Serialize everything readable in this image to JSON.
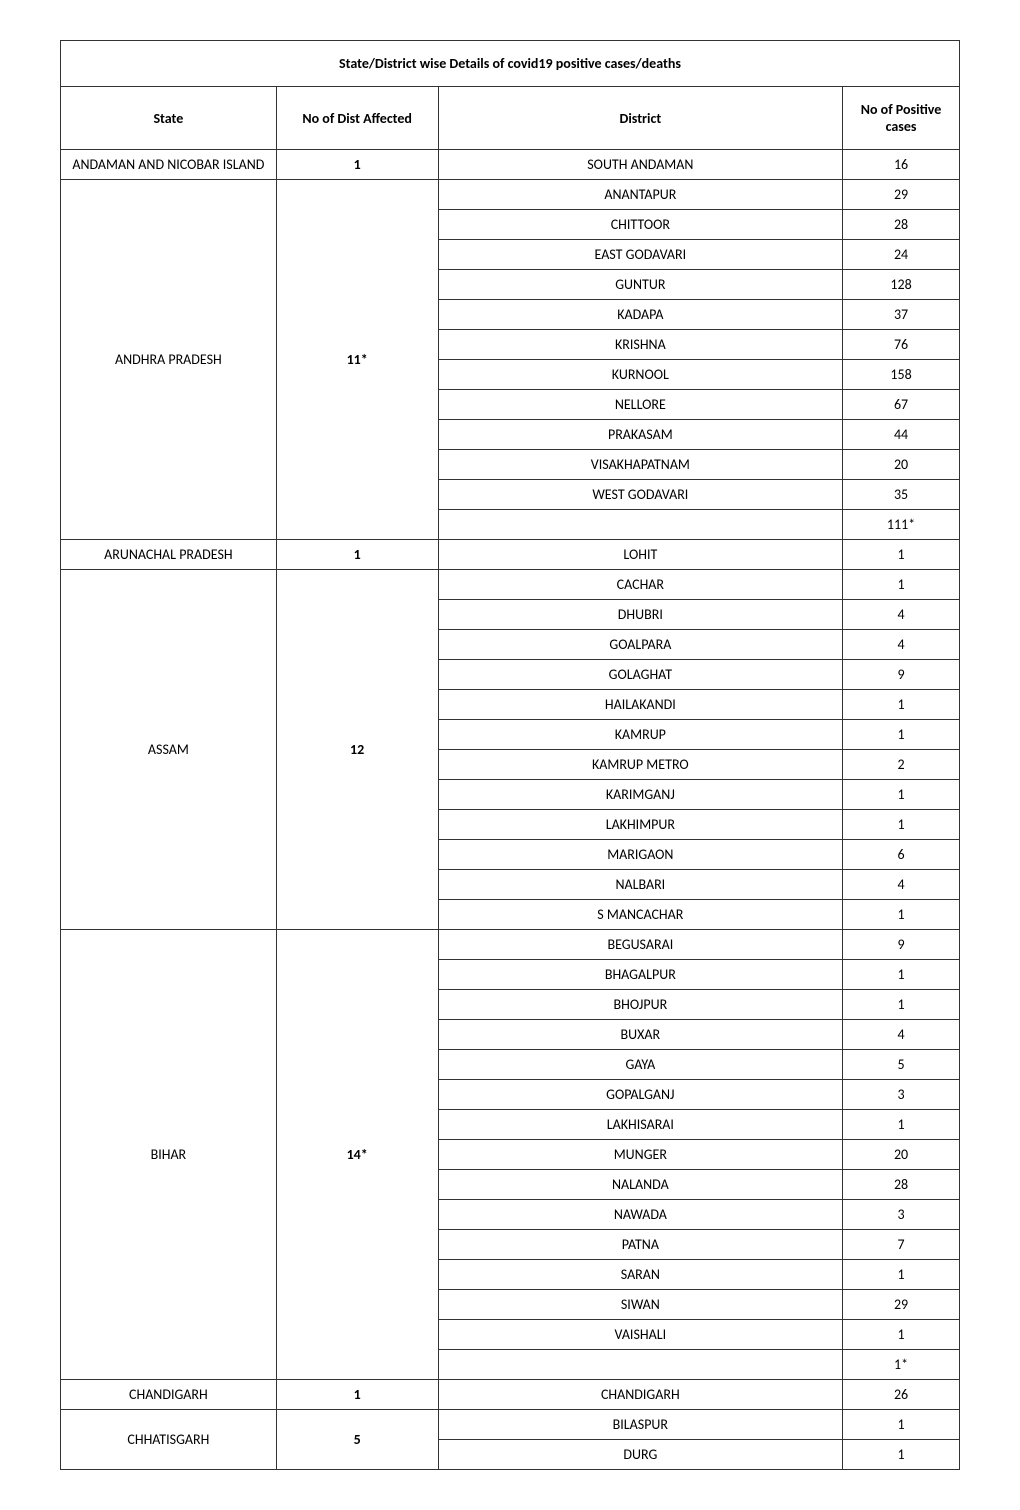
{
  "title": "State/District wise Details of covid19 positive cases/deaths",
  "headers": {
    "state": "State",
    "dist_count": "No of Dist Affected",
    "district": "District",
    "cases": "No of Positive cases"
  },
  "colors": {
    "text": "#000000",
    "border": "#333333",
    "background": "#ffffff"
  },
  "font": {
    "family": "Calibri, Arial, sans-serif",
    "body_size": 14,
    "header_weight": "bold"
  },
  "states": [
    {
      "name": "ANDAMAN AND NICOBAR ISLAND",
      "dist_count": "1",
      "districts": [
        {
          "name": "SOUTH ANDAMAN",
          "cases": "16"
        }
      ]
    },
    {
      "name": "ANDHRA PRADESH",
      "dist_count": "11*",
      "districts": [
        {
          "name": "ANANTAPUR",
          "cases": "29"
        },
        {
          "name": "CHITTOOR",
          "cases": "28"
        },
        {
          "name": "EAST GODAVARI",
          "cases": "24"
        },
        {
          "name": "GUNTUR",
          "cases": "128"
        },
        {
          "name": "KADAPA",
          "cases": "37"
        },
        {
          "name": "KRISHNA",
          "cases": "76"
        },
        {
          "name": "KURNOOL",
          "cases": "158"
        },
        {
          "name": "NELLORE",
          "cases": "67"
        },
        {
          "name": "PRAKASAM",
          "cases": "44"
        },
        {
          "name": "VISAKHAPATNAM",
          "cases": "20"
        },
        {
          "name": "WEST GODAVARI",
          "cases": "35"
        },
        {
          "name": "",
          "cases": "111*"
        }
      ]
    },
    {
      "name": "ARUNACHAL PRADESH",
      "dist_count": "1",
      "districts": [
        {
          "name": "LOHIT",
          "cases": "1"
        }
      ]
    },
    {
      "name": "ASSAM",
      "dist_count": "12",
      "districts": [
        {
          "name": "CACHAR",
          "cases": "1"
        },
        {
          "name": "DHUBRI",
          "cases": "4"
        },
        {
          "name": "GOALPARA",
          "cases": "4"
        },
        {
          "name": "GOLAGHAT",
          "cases": "9"
        },
        {
          "name": "HAILAKANDI",
          "cases": "1"
        },
        {
          "name": "KAMRUP",
          "cases": "1"
        },
        {
          "name": "KAMRUP METRO",
          "cases": "2"
        },
        {
          "name": "KARIMGANJ",
          "cases": "1"
        },
        {
          "name": "LAKHIMPUR",
          "cases": "1"
        },
        {
          "name": "MARIGAON",
          "cases": "6"
        },
        {
          "name": "NALBARI",
          "cases": "4"
        },
        {
          "name": "S MANCACHAR",
          "cases": "1"
        }
      ]
    },
    {
      "name": "BIHAR",
      "dist_count": "14*",
      "districts": [
        {
          "name": "BEGUSARAI",
          "cases": "9"
        },
        {
          "name": "BHAGALPUR",
          "cases": "1"
        },
        {
          "name": "BHOJPUR",
          "cases": "1"
        },
        {
          "name": "BUXAR",
          "cases": "4"
        },
        {
          "name": "GAYA",
          "cases": "5"
        },
        {
          "name": "GOPALGANJ",
          "cases": "3"
        },
        {
          "name": "LAKHISARAI",
          "cases": "1"
        },
        {
          "name": "MUNGER",
          "cases": "20"
        },
        {
          "name": "NALANDA",
          "cases": "28"
        },
        {
          "name": "NAWADA",
          "cases": "3"
        },
        {
          "name": "PATNA",
          "cases": "7"
        },
        {
          "name": "SARAN",
          "cases": "1"
        },
        {
          "name": "SIWAN",
          "cases": "29"
        },
        {
          "name": "VAISHALI",
          "cases": "1"
        },
        {
          "name": "",
          "cases": "1*"
        }
      ]
    },
    {
      "name": "CHANDIGARH",
      "dist_count": "1",
      "districts": [
        {
          "name": "CHANDIGARH",
          "cases": "26"
        }
      ]
    },
    {
      "name": "CHHATISGARH",
      "dist_count": "5",
      "districts": [
        {
          "name": "BILASPUR",
          "cases": "1"
        },
        {
          "name": "DURG",
          "cases": "1"
        }
      ]
    }
  ]
}
